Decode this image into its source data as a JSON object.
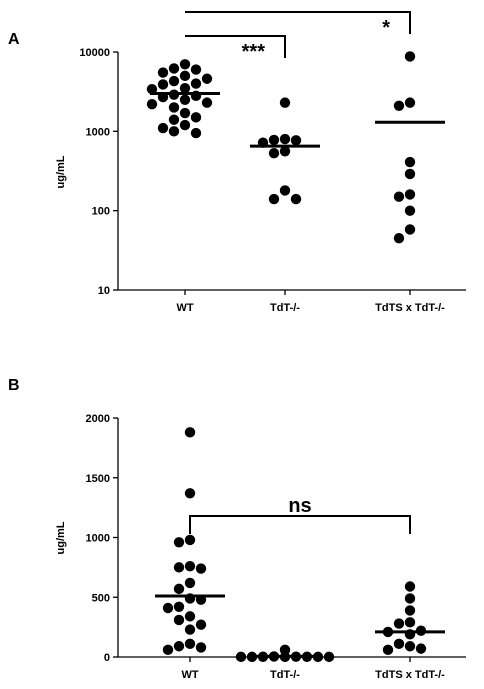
{
  "chart_data": [
    {
      "panel": "A",
      "type": "scatter",
      "ylabel": "ug/mL",
      "yscale": "log",
      "ylim": [
        10,
        10000
      ],
      "yticks": [
        10,
        100,
        1000,
        10000
      ],
      "ytick_labels": [
        "10",
        "100",
        "1000",
        "10000"
      ],
      "categories": [
        "WT",
        "TdT-/-",
        "TdTS x TdT-/-"
      ],
      "groups": [
        {
          "category": "WT",
          "mean": 3000,
          "values": [
            7000,
            6200,
            5500,
            5000,
            6000,
            4600,
            4300,
            4000,
            3900,
            3500,
            3400,
            2900,
            2800,
            2700,
            2500,
            2300,
            2200,
            2000,
            1700,
            1500,
            1400,
            1200,
            1100,
            1000,
            950
          ]
        },
        {
          "category": "TdT-/-",
          "mean": 650,
          "values": [
            2300,
            800,
            780,
            770,
            720,
            560,
            530,
            180,
            140,
            140
          ]
        },
        {
          "category": "TdTS x TdT-/-",
          "mean": 1300,
          "values": [
            8800,
            2300,
            2100,
            410,
            290,
            160,
            150,
            100,
            58,
            45
          ]
        }
      ],
      "comparisons": [
        {
          "groups": [
            "WT",
            "TdT-/-"
          ],
          "label": "***"
        },
        {
          "groups": [
            "WT",
            "TdTS x TdT-/-"
          ],
          "label": "*"
        }
      ]
    },
    {
      "panel": "B",
      "type": "scatter",
      "ylabel": "ug/mL",
      "yscale": "linear",
      "ylim": [
        0,
        2000
      ],
      "yticks": [
        0,
        500,
        1000,
        1500,
        2000
      ],
      "ytick_labels": [
        "0",
        "500",
        "1000",
        "1500",
        "2000"
      ],
      "categories": [
        "WT",
        "TdT-/-",
        "TdTS x TdT-/-"
      ],
      "groups": [
        {
          "category": "WT",
          "mean": 510,
          "values": [
            1880,
            1370,
            980,
            960,
            760,
            750,
            740,
            620,
            570,
            490,
            480,
            420,
            410,
            340,
            310,
            270,
            230,
            110,
            90,
            80,
            60
          ]
        },
        {
          "category": "TdT-/-",
          "mean": 5,
          "values": [
            60,
            5,
            3,
            2,
            2,
            1,
            1,
            1,
            1,
            1
          ]
        },
        {
          "category": "TdTS x TdT-/-",
          "mean": 210,
          "values": [
            590,
            490,
            390,
            290,
            280,
            220,
            210,
            190,
            110,
            90,
            70,
            60
          ]
        }
      ],
      "comparisons": [
        {
          "groups": [
            "WT",
            "TdTS x TdT-/-"
          ],
          "label": "ns"
        }
      ]
    }
  ]
}
